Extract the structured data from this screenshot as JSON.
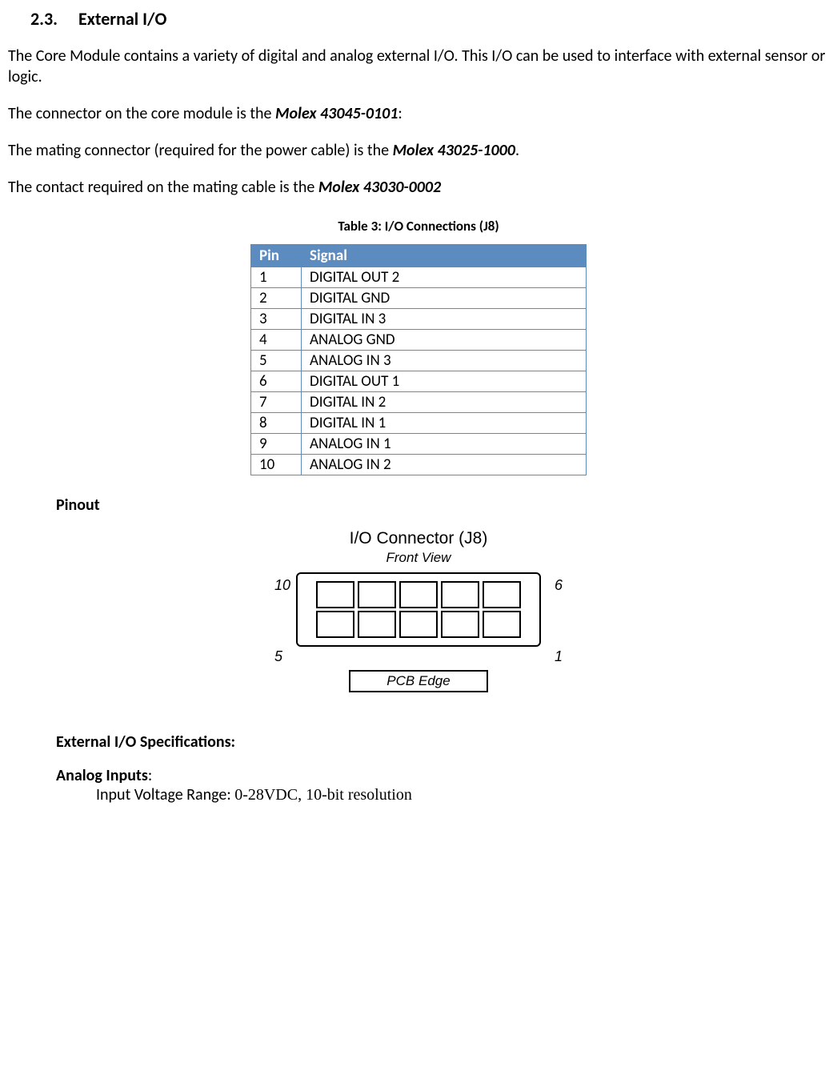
{
  "heading": {
    "num": "2.3.",
    "title": "External I/O"
  },
  "para1": "The Core Module contains a variety of digital and analog external I/O.  This I/O can be used to interface with external sensor or logic.",
  "para2_pre": "The connector on the core module is the ",
  "para2_bold": "Molex 43045-0101",
  "para2_post": ":",
  "para3_pre": "The mating connector (required for the power cable) is the ",
  "para3_bold": "Molex 43025-1000",
  "para3_post": ".",
  "para4_pre": "The contact required on the mating cable is the ",
  "para4_bold": "Molex 43030-0002",
  "table": {
    "caption": "Table 3:  I/O Connections (J8)",
    "col1": "Pin",
    "col2": "Signal",
    "rows": [
      {
        "pin": "1",
        "sig": "DIGITAL OUT 2"
      },
      {
        "pin": "2",
        "sig": "DIGITAL GND"
      },
      {
        "pin": "3",
        "sig": "DIGITAL IN 3"
      },
      {
        "pin": "4",
        "sig": "ANALOG GND"
      },
      {
        "pin": "5",
        "sig": "ANALOG IN 3"
      },
      {
        "pin": "6",
        "sig": "DIGITAL OUT 1"
      },
      {
        "pin": "7",
        "sig": "DIGITAL IN 2"
      },
      {
        "pin": "8",
        "sig": "DIGITAL IN 1"
      },
      {
        "pin": "9",
        "sig": "ANALOG IN 1"
      },
      {
        "pin": "10",
        "sig": "ANALOG IN 2"
      }
    ]
  },
  "pinout_heading": "Pinout",
  "figure": {
    "title": "I/O Connector (J8)",
    "sub": "Front View",
    "top_left": "10",
    "top_right": "6",
    "bot_left": "5",
    "bot_right": "1",
    "pcb": "PCB Edge"
  },
  "spec_heading": "External I/O Specifications:",
  "analog_label": "Analog Inputs",
  "analog_colon": ":",
  "input_range_label": "Input Voltage Range: ",
  "input_range_val": "0-28VDC, 10-bit resolution"
}
